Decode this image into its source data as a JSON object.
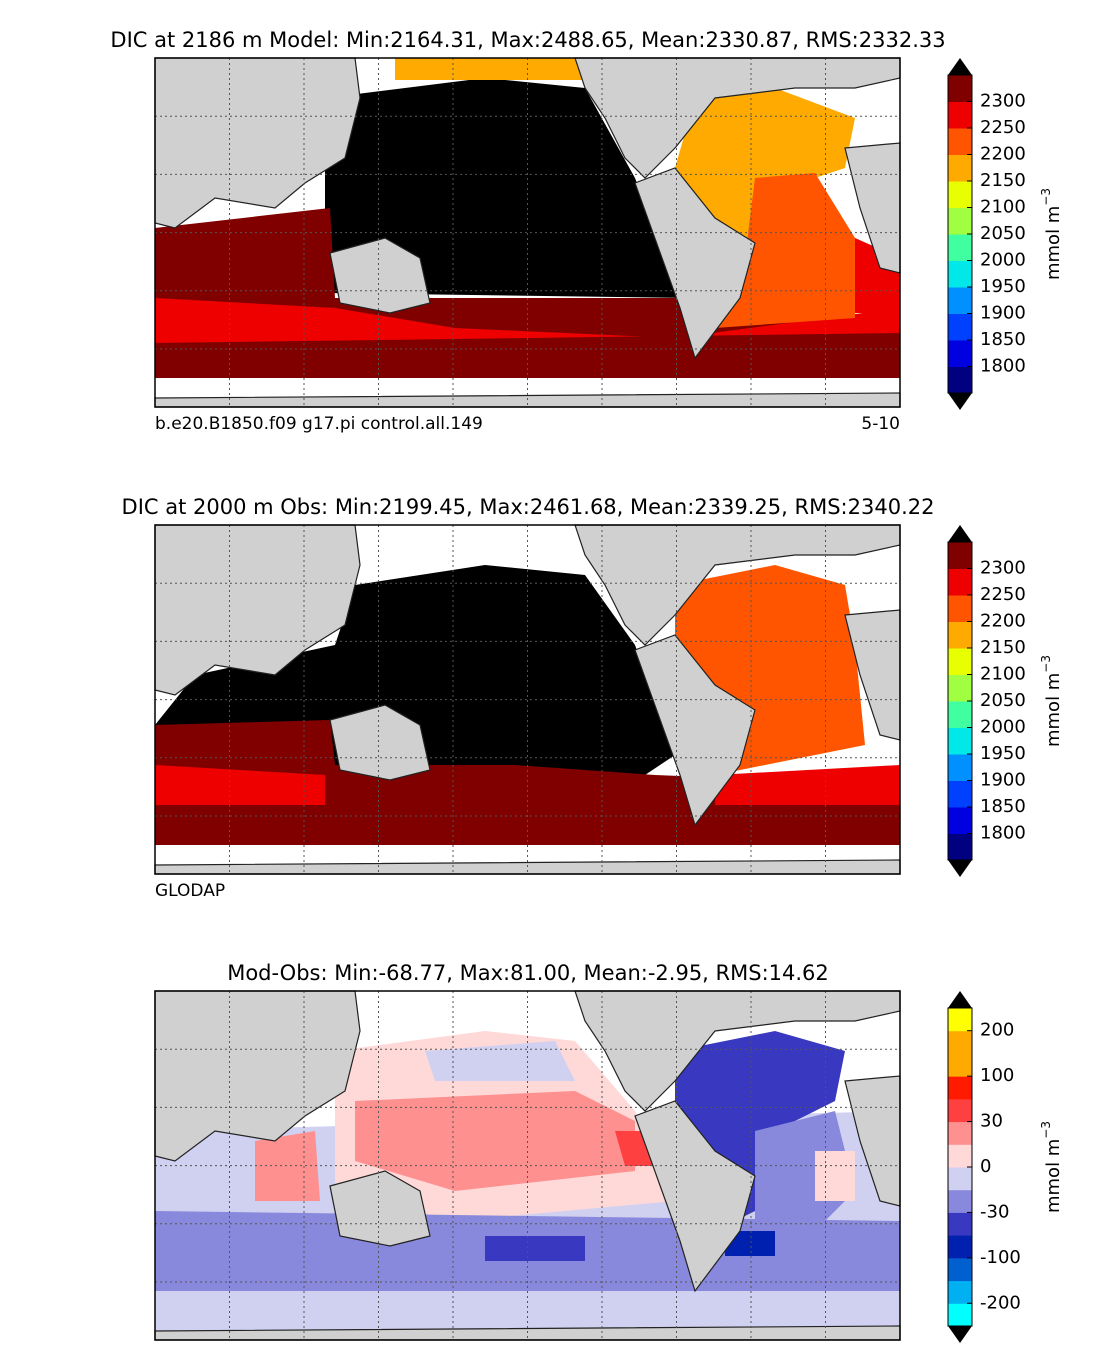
{
  "panels": [
    {
      "title": "DIC at 2186 m Model: Min:2164.31, Max:2488.65, Mean:2330.87, RMS:2332.33",
      "notes": [
        "b.e20.B1850.f09 g17.pi control.all.149",
        "5-10"
      ],
      "colorbar": {
        "label": "mmol m",
        "label_exponent": "−3",
        "ticks": [
          1800,
          1850,
          1900,
          1950,
          2000,
          2050,
          2100,
          2150,
          2200,
          2250,
          2300
        ],
        "boundaries": [
          1750,
          1800,
          1850,
          1900,
          1950,
          2000,
          2050,
          2100,
          2150,
          2200,
          2250,
          2300,
          2350
        ],
        "colors": [
          "#000080",
          "#0000e0",
          "#0040ff",
          "#0090ff",
          "#00e8e8",
          "#40ffa0",
          "#a0ff40",
          "#e8ff00",
          "#ffaa00",
          "#ff5500",
          "#ee0000",
          "#800000"
        ],
        "extend_color": "#000000"
      }
    },
    {
      "title": "DIC at 2000 m Obs: Min:2199.45, Max:2461.68, Mean:2339.25, RMS:2340.22",
      "notes": [
        "GLODAP"
      ],
      "colorbar": {
        "label": "mmol m",
        "label_exponent": "−3",
        "ticks": [
          1800,
          1850,
          1900,
          1950,
          2000,
          2050,
          2100,
          2150,
          2200,
          2250,
          2300
        ],
        "boundaries": [
          1750,
          1800,
          1850,
          1900,
          1950,
          2000,
          2050,
          2100,
          2150,
          2200,
          2250,
          2300,
          2350
        ],
        "colors": [
          "#000080",
          "#0000e0",
          "#0040ff",
          "#0090ff",
          "#00e8e8",
          "#40ffa0",
          "#a0ff40",
          "#e8ff00",
          "#ffaa00",
          "#ff5500",
          "#ee0000",
          "#800000"
        ],
        "extend_color": "#000000"
      }
    },
    {
      "title": "Mod-Obs: Min:-68.77, Max:81.00, Mean:-2.95, RMS:14.62",
      "notes": [],
      "colorbar": {
        "label": "mmol m",
        "label_exponent": "−3",
        "ticks": [
          -200,
          -100,
          -30,
          0,
          30,
          100,
          200
        ],
        "boundaries": [
          -250,
          -200,
          -150,
          -100,
          -50,
          -30,
          -10,
          0,
          10,
          30,
          50,
          100,
          150,
          200,
          250
        ],
        "colors": [
          "#00ffff",
          "#00b0f0",
          "#0060d0",
          "#0020b0",
          "#3838c0",
          "#8888dd",
          "#d0d0f0",
          "#ffd8d8",
          "#ff9090",
          "#ff4040",
          "#ff1a00",
          "#ffaa00",
          "#ffaa00",
          "#ffff00"
        ],
        "extend_color": "#000000"
      }
    }
  ]
}
